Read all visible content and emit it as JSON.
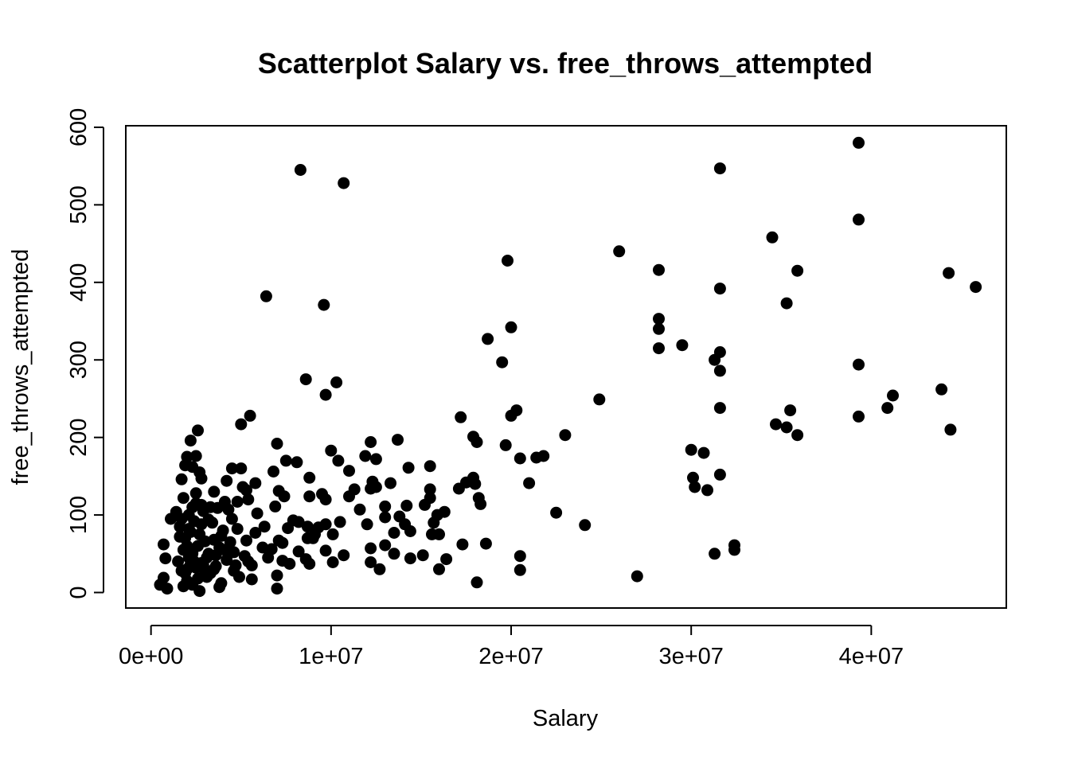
{
  "chart_data": {
    "type": "scatter",
    "title": "Scatterplot Salary vs. free_throws_attempted",
    "xlabel": "Salary",
    "ylabel": "free_throws_attempted",
    "xlim": [
      -1400000,
      47500000
    ],
    "ylim": [
      -20,
      602
    ],
    "x_ticks": [
      0,
      10000000,
      20000000,
      30000000,
      40000000
    ],
    "x_tick_labels": [
      "0e+00",
      "1e+07",
      "2e+07",
      "3e+07",
      "4e+07"
    ],
    "y_ticks": [
      0,
      100,
      200,
      300,
      400,
      500,
      600
    ],
    "y_tick_labels": [
      "0",
      "100",
      "200",
      "300",
      "400",
      "500",
      "600"
    ],
    "grid": false,
    "legend": "none",
    "point_color": "#000000",
    "points": [
      [
        39300000,
        580
      ],
      [
        8300000,
        545
      ],
      [
        31600000,
        547
      ],
      [
        10700000,
        528
      ],
      [
        39300000,
        481
      ],
      [
        34500000,
        458
      ],
      [
        26000000,
        440
      ],
      [
        19800000,
        428
      ],
      [
        28200000,
        416
      ],
      [
        35900000,
        415
      ],
      [
        44300000,
        412
      ],
      [
        45800000,
        394
      ],
      [
        31600000,
        392
      ],
      [
        6400000,
        382
      ],
      [
        35300000,
        373
      ],
      [
        9600000,
        371
      ],
      [
        28200000,
        353
      ],
      [
        20000000,
        342
      ],
      [
        28200000,
        340
      ],
      [
        18700000,
        327
      ],
      [
        29500000,
        319
      ],
      [
        28200000,
        315
      ],
      [
        31600000,
        310
      ],
      [
        31300000,
        300
      ],
      [
        19500000,
        297
      ],
      [
        39300000,
        294
      ],
      [
        31600000,
        286
      ],
      [
        8600000,
        275
      ],
      [
        10300000,
        271
      ],
      [
        43900000,
        262
      ],
      [
        41200000,
        254
      ],
      [
        9700000,
        255
      ],
      [
        24900000,
        249
      ],
      [
        40900000,
        238
      ],
      [
        31600000,
        238
      ],
      [
        35500000,
        235
      ],
      [
        20300000,
        235
      ],
      [
        5500000,
        228
      ],
      [
        20000000,
        228
      ],
      [
        39300000,
        227
      ],
      [
        17200000,
        226
      ],
      [
        34700000,
        217
      ],
      [
        5000000,
        217
      ],
      [
        35300000,
        213
      ],
      [
        44400000,
        210
      ],
      [
        2600000,
        209
      ],
      [
        23000000,
        203
      ],
      [
        35900000,
        203
      ],
      [
        17900000,
        201
      ],
      [
        13700000,
        197
      ],
      [
        18100000,
        194
      ],
      [
        12200000,
        194
      ],
      [
        19700000,
        190
      ],
      [
        2200000,
        196
      ],
      [
        7000000,
        192
      ],
      [
        30000000,
        184
      ],
      [
        10000000,
        183
      ],
      [
        30700000,
        180
      ],
      [
        21800000,
        176
      ],
      [
        11900000,
        176
      ],
      [
        21400000,
        174
      ],
      [
        20500000,
        173
      ],
      [
        2000000,
        175
      ],
      [
        2500000,
        176
      ],
      [
        12500000,
        172
      ],
      [
        7500000,
        170
      ],
      [
        10400000,
        170
      ],
      [
        8100000,
        168
      ],
      [
        1900000,
        164
      ],
      [
        2300000,
        162
      ],
      [
        15500000,
        163
      ],
      [
        14300000,
        161
      ],
      [
        4500000,
        160
      ],
      [
        5000000,
        160
      ],
      [
        11000000,
        157
      ],
      [
        6800000,
        156
      ],
      [
        2700000,
        155
      ],
      [
        31600000,
        152
      ],
      [
        30100000,
        148
      ],
      [
        8800000,
        148
      ],
      [
        17900000,
        148
      ],
      [
        2800000,
        147
      ],
      [
        1700000,
        146
      ],
      [
        4200000,
        144
      ],
      [
        12300000,
        143
      ],
      [
        17500000,
        142
      ],
      [
        13300000,
        141
      ],
      [
        21000000,
        141
      ],
      [
        5800000,
        141
      ],
      [
        18000000,
        140
      ],
      [
        30200000,
        136
      ],
      [
        5100000,
        136
      ],
      [
        12500000,
        136
      ],
      [
        12200000,
        134
      ],
      [
        11300000,
        133
      ],
      [
        15500000,
        133
      ],
      [
        17100000,
        134
      ],
      [
        7100000,
        131
      ],
      [
        30900000,
        132
      ],
      [
        3500000,
        130
      ],
      [
        5300000,
        132
      ],
      [
        9500000,
        127
      ],
      [
        2500000,
        128
      ],
      [
        7400000,
        124
      ],
      [
        8800000,
        124
      ],
      [
        11000000,
        124
      ],
      [
        15500000,
        122
      ],
      [
        1800000,
        122
      ],
      [
        18200000,
        122
      ],
      [
        5400000,
        120
      ],
      [
        9700000,
        120
      ],
      [
        4800000,
        117
      ],
      [
        4100000,
        117
      ],
      [
        18300000,
        114
      ],
      [
        2800000,
        113
      ],
      [
        15200000,
        113
      ],
      [
        14200000,
        112
      ],
      [
        13000000,
        111
      ],
      [
        6900000,
        111
      ],
      [
        2300000,
        110
      ],
      [
        3700000,
        109
      ],
      [
        11600000,
        107
      ],
      [
        4300000,
        107
      ],
      [
        16300000,
        104
      ],
      [
        22500000,
        103
      ],
      [
        1400000,
        104
      ],
      [
        5900000,
        102
      ],
      [
        15900000,
        100
      ],
      [
        13800000,
        98
      ],
      [
        13000000,
        97
      ],
      [
        1100000,
        95
      ],
      [
        3200000,
        94
      ],
      [
        7900000,
        93
      ],
      [
        10500000,
        91
      ],
      [
        8200000,
        91
      ],
      [
        15700000,
        90
      ],
      [
        12000000,
        88
      ],
      [
        14100000,
        88
      ],
      [
        24100000,
        87
      ],
      [
        9700000,
        88
      ],
      [
        6300000,
        85
      ],
      [
        8700000,
        85
      ],
      [
        9300000,
        84
      ],
      [
        7600000,
        83
      ],
      [
        2100000,
        82
      ],
      [
        4000000,
        80
      ],
      [
        14400000,
        79
      ],
      [
        5800000,
        77
      ],
      [
        13500000,
        77
      ],
      [
        15600000,
        75
      ],
      [
        16000000,
        75
      ],
      [
        10100000,
        75
      ],
      [
        9100000,
        75
      ],
      [
        3900000,
        73
      ],
      [
        8700000,
        70
      ],
      [
        9000000,
        70
      ],
      [
        3500000,
        68
      ],
      [
        5300000,
        67
      ],
      [
        7100000,
        67
      ],
      [
        7300000,
        64
      ],
      [
        18600000,
        63
      ],
      [
        17300000,
        62
      ],
      [
        32400000,
        61
      ],
      [
        13000000,
        61
      ],
      [
        700000,
        62
      ],
      [
        6200000,
        58
      ],
      [
        12200000,
        57
      ],
      [
        6700000,
        56
      ],
      [
        32400000,
        55
      ],
      [
        9700000,
        54
      ],
      [
        8200000,
        53
      ],
      [
        4600000,
        52
      ],
      [
        31300000,
        50
      ],
      [
        13500000,
        50
      ],
      [
        15100000,
        48
      ],
      [
        20500000,
        47
      ],
      [
        10700000,
        48
      ],
      [
        3100000,
        45
      ],
      [
        6500000,
        45
      ],
      [
        14400000,
        44
      ],
      [
        800000,
        44
      ],
      [
        16400000,
        43
      ],
      [
        7300000,
        41
      ],
      [
        8600000,
        43
      ],
      [
        5400000,
        40
      ],
      [
        10100000,
        39
      ],
      [
        12200000,
        39
      ],
      [
        2800000,
        38
      ],
      [
        7700000,
        37
      ],
      [
        8800000,
        37
      ],
      [
        2200000,
        36
      ],
      [
        5600000,
        35
      ],
      [
        3600000,
        34
      ],
      [
        16000000,
        30
      ],
      [
        12700000,
        30
      ],
      [
        20500000,
        29
      ],
      [
        4600000,
        28
      ],
      [
        1700000,
        28
      ],
      [
        3000000,
        27
      ],
      [
        7000000,
        22
      ],
      [
        27000000,
        21
      ],
      [
        4900000,
        20
      ],
      [
        5600000,
        17
      ],
      [
        700000,
        19
      ],
      [
        18100000,
        13
      ],
      [
        3900000,
        12
      ],
      [
        2300000,
        10
      ],
      [
        500000,
        10
      ],
      [
        1800000,
        8
      ],
      [
        3800000,
        7
      ],
      [
        900000,
        5
      ],
      [
        7000000,
        5
      ],
      [
        2700000,
        2
      ],
      [
        2000000,
        30
      ],
      [
        2400000,
        40
      ],
      [
        3200000,
        50
      ],
      [
        2600000,
        60
      ],
      [
        1900000,
        70
      ],
      [
        2900000,
        35
      ],
      [
        3300000,
        25
      ],
      [
        4100000,
        55
      ],
      [
        1600000,
        85
      ],
      [
        2100000,
        100
      ],
      [
        2500000,
        115
      ],
      [
        3400000,
        90
      ],
      [
        1800000,
        55
      ],
      [
        2700000,
        75
      ],
      [
        4400000,
        65
      ],
      [
        3100000,
        20
      ],
      [
        2300000,
        50
      ],
      [
        1500000,
        40
      ],
      [
        4700000,
        35
      ],
      [
        2000000,
        60
      ],
      [
        3600000,
        48
      ],
      [
        2800000,
        88
      ],
      [
        1700000,
        95
      ],
      [
        4200000,
        42
      ],
      [
        2600000,
        18
      ],
      [
        3000000,
        66
      ],
      [
        2200000,
        78
      ],
      [
        1900000,
        25
      ],
      [
        4800000,
        82
      ],
      [
        3500000,
        30
      ],
      [
        2400000,
        92
      ],
      [
        2100000,
        45
      ],
      [
        3800000,
        58
      ],
      [
        5200000,
        47
      ],
      [
        1600000,
        72
      ],
      [
        2900000,
        105
      ],
      [
        4500000,
        95
      ],
      [
        3300000,
        110
      ],
      [
        2500000,
        32
      ],
      [
        2000000,
        15
      ]
    ]
  }
}
